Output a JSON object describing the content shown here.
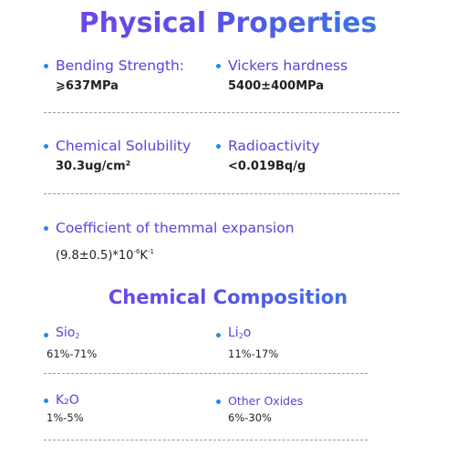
{
  "physical": {
    "title": "Physical Properties",
    "bending": {
      "label": "Bending Strength:",
      "value": "⩾637MPa"
    },
    "vickers": {
      "label": "Vickers hardness",
      "value": "5400±400MPa"
    },
    "solubility": {
      "label": "Chemical Solubility",
      "value": "30.3ug/cm²"
    },
    "radioactivity": {
      "label": "Radioactivity",
      "value": "<0.019Bq/g"
    },
    "expansion": {
      "label": "Coefficient of themmal expansion",
      "value_main": "(9.8±0.5)*10",
      "value_exp": "-6",
      "value_unit": "K",
      "value_unit_exp": "-1"
    }
  },
  "chemical": {
    "title": "Chemical Composition",
    "sio2": {
      "label_main": "Sio",
      "label_sub": "2",
      "value": "61%-71%"
    },
    "li2o": {
      "label_main": "Li",
      "label_sub": "2",
      "label_end": "o",
      "value": "11%-17%"
    },
    "k2o": {
      "label": "K₂O",
      "value": "1%-5%"
    },
    "other": {
      "label": "Other Oxides",
      "value": "6%-30%"
    }
  },
  "colors": {
    "accent_start": "#7b3ff2",
    "accent_end": "#2a86e8",
    "label": "#5546d8"
  }
}
